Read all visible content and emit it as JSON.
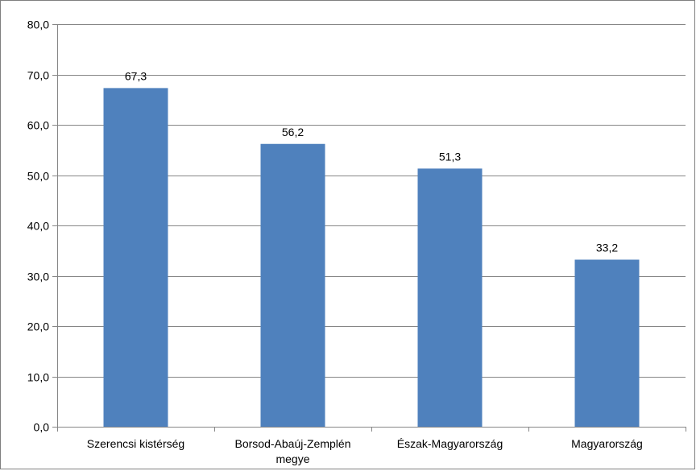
{
  "chart_data": {
    "type": "bar",
    "title": "",
    "xlabel": "",
    "ylabel": "",
    "categories": [
      [
        "Szerencsi kistérség"
      ],
      [
        "Borsod-Abaúj-Zemplén",
        "megye"
      ],
      [
        "Észak-Magyarország"
      ],
      [
        "Magyarország"
      ]
    ],
    "values": [
      67.3,
      56.2,
      51.3,
      33.2
    ],
    "data_labels": [
      "67,3",
      "56,2",
      "51,3",
      "33,2"
    ],
    "ylim": [
      0,
      80
    ],
    "yticks": [
      0,
      10,
      20,
      30,
      40,
      50,
      60,
      70,
      80
    ],
    "ytick_labels": [
      "0,0",
      "10,0",
      "20,0",
      "30,0",
      "40,0",
      "50,0",
      "60,0",
      "70,0",
      "80,0"
    ],
    "grid": true,
    "legend": "none",
    "colors": {
      "bar": "#4f81bd",
      "grid": "#868686",
      "axis": "#868686"
    }
  }
}
